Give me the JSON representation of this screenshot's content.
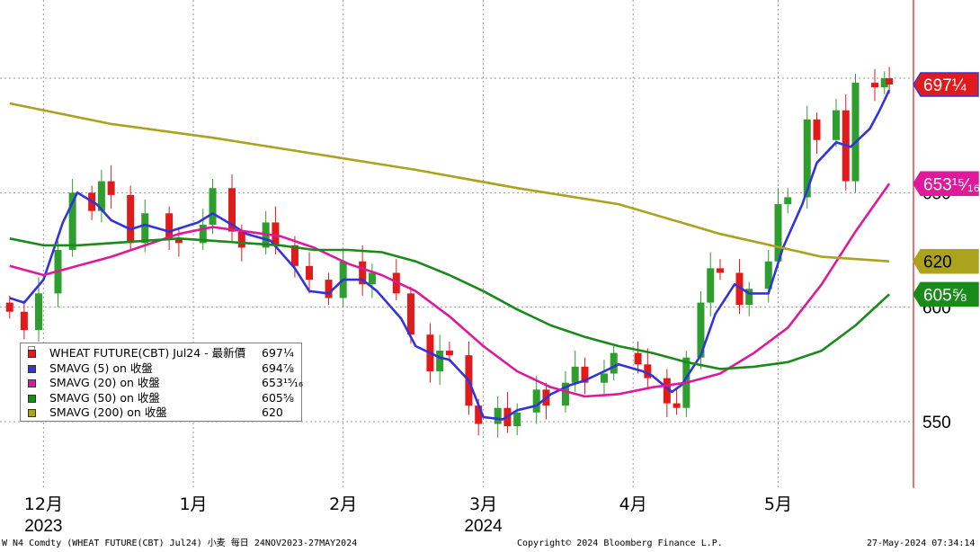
{
  "chart_data": {
    "type": "candlestick",
    "instrument": "W N4 Comdty (WHEAT FUTURE(CBT) Jul24) 小麦  每日 24NOV2023-27MAY2024",
    "y_axis": {
      "side": "right",
      "ticks": [
        550,
        600,
        650,
        700
      ],
      "ylim": [
        520,
        738
      ],
      "grid": true
    },
    "x_axis": {
      "months": [
        {
          "label": "12月",
          "date": "2023-12-01"
        },
        {
          "label": "1月",
          "date": "2024-01-01"
        },
        {
          "label": "2月",
          "date": "2024-02-01"
        },
        {
          "label": "3月",
          "date": "2024-03-01"
        },
        {
          "label": "4月",
          "date": "2024-04-01"
        },
        {
          "label": "5月",
          "date": "2024-05-01"
        }
      ],
      "years": [
        {
          "label": "2023",
          "date": "2023-12-01"
        },
        {
          "label": "2024",
          "date": "2024-03-01"
        }
      ],
      "grid": true
    },
    "up_color": "#2e9e2e",
    "down_color": "#e01b1b",
    "closes": [
      {
        "date": "2023-11-24",
        "close": 598
      },
      {
        "date": "2023-11-27",
        "close": 590
      },
      {
        "date": "2023-11-30",
        "close": 606
      },
      {
        "date": "2023-12-04",
        "close": 625
      },
      {
        "date": "2023-12-07",
        "close": 650
      },
      {
        "date": "2023-12-11",
        "close": 642
      },
      {
        "date": "2023-12-13",
        "close": 655
      },
      {
        "date": "2023-12-15",
        "close": 649
      },
      {
        "date": "2023-12-19",
        "close": 628
      },
      {
        "date": "2023-12-22",
        "close": 641
      },
      {
        "date": "2023-12-27",
        "close": 630
      },
      {
        "date": "2023-12-29",
        "close": 628
      },
      {
        "date": "2024-01-03",
        "close": 636
      },
      {
        "date": "2024-01-05",
        "close": 652
      },
      {
        "date": "2024-01-09",
        "close": 633
      },
      {
        "date": "2024-01-11",
        "close": 626
      },
      {
        "date": "2024-01-16",
        "close": 637
      },
      {
        "date": "2024-01-18",
        "close": 627
      },
      {
        "date": "2024-01-22",
        "close": 618
      },
      {
        "date": "2024-01-25",
        "close": 612
      },
      {
        "date": "2024-01-29",
        "close": 604
      },
      {
        "date": "2024-02-01",
        "close": 620
      },
      {
        "date": "2024-02-05",
        "close": 610
      },
      {
        "date": "2024-02-07",
        "close": 615
      },
      {
        "date": "2024-02-12",
        "close": 606
      },
      {
        "date": "2024-02-15",
        "close": 588
      },
      {
        "date": "2024-02-19",
        "close": 572
      },
      {
        "date": "2024-02-21",
        "close": 581
      },
      {
        "date": "2024-02-23",
        "close": 579
      },
      {
        "date": "2024-02-27",
        "close": 557
      },
      {
        "date": "2024-02-29",
        "close": 549
      },
      {
        "date": "2024-03-04",
        "close": 556
      },
      {
        "date": "2024-03-06",
        "close": 548
      },
      {
        "date": "2024-03-08",
        "close": 554
      },
      {
        "date": "2024-03-12",
        "close": 564
      },
      {
        "date": "2024-03-14",
        "close": 557
      },
      {
        "date": "2024-03-18",
        "close": 567
      },
      {
        "date": "2024-03-20",
        "close": 574
      },
      {
        "date": "2024-03-22",
        "close": 567
      },
      {
        "date": "2024-03-26",
        "close": 571
      },
      {
        "date": "2024-03-28",
        "close": 580
      },
      {
        "date": "2024-04-02",
        "close": 575
      },
      {
        "date": "2024-04-04",
        "close": 569
      },
      {
        "date": "2024-04-08",
        "close": 558
      },
      {
        "date": "2024-04-10",
        "close": 556
      },
      {
        "date": "2024-04-12",
        "close": 578
      },
      {
        "date": "2024-04-15",
        "close": 602
      },
      {
        "date": "2024-04-17",
        "close": 617
      },
      {
        "date": "2024-04-19",
        "close": 615
      },
      {
        "date": "2024-04-23",
        "close": 601
      },
      {
        "date": "2024-04-25",
        "close": 608
      },
      {
        "date": "2024-04-29",
        "close": 620
      },
      {
        "date": "2024-05-01",
        "close": 645
      },
      {
        "date": "2024-05-03",
        "close": 648
      },
      {
        "date": "2024-05-07",
        "close": 682
      },
      {
        "date": "2024-05-09",
        "close": 673
      },
      {
        "date": "2024-05-13",
        "close": 686
      },
      {
        "date": "2024-05-15",
        "close": 655
      },
      {
        "date": "2024-05-17",
        "close": 698
      },
      {
        "date": "2024-05-21",
        "close": 696
      },
      {
        "date": "2024-05-23",
        "close": 700
      },
      {
        "date": "2024-05-24",
        "close": 697.25
      }
    ],
    "series": [
      {
        "name": "SMAVG (5)  on 收盤",
        "color": "#3333dd",
        "points": [
          {
            "date": "2023-11-24",
            "value": 604
          },
          {
            "date": "2023-11-27",
            "value": 602
          },
          {
            "date": "2023-12-01",
            "value": 612
          },
          {
            "date": "2023-12-05",
            "value": 637
          },
          {
            "date": "2023-12-08",
            "value": 650
          },
          {
            "date": "2023-12-12",
            "value": 645
          },
          {
            "date": "2023-12-15",
            "value": 638
          },
          {
            "date": "2023-12-19",
            "value": 634
          },
          {
            "date": "2023-12-22",
            "value": 636
          },
          {
            "date": "2023-12-27",
            "value": 633
          },
          {
            "date": "2024-01-02",
            "value": 637
          },
          {
            "date": "2024-01-05",
            "value": 641
          },
          {
            "date": "2024-01-09",
            "value": 636
          },
          {
            "date": "2024-01-12",
            "value": 632
          },
          {
            "date": "2024-01-17",
            "value": 629
          },
          {
            "date": "2024-01-22",
            "value": 617
          },
          {
            "date": "2024-01-25",
            "value": 607
          },
          {
            "date": "2024-01-29",
            "value": 606
          },
          {
            "date": "2024-02-01",
            "value": 612
          },
          {
            "date": "2024-02-05",
            "value": 612
          },
          {
            "date": "2024-02-08",
            "value": 607
          },
          {
            "date": "2024-02-13",
            "value": 595
          },
          {
            "date": "2024-02-16",
            "value": 583
          },
          {
            "date": "2024-02-21",
            "value": 578
          },
          {
            "date": "2024-02-23",
            "value": 577
          },
          {
            "date": "2024-02-27",
            "value": 568
          },
          {
            "date": "2024-03-01",
            "value": 552
          },
          {
            "date": "2024-03-05",
            "value": 551
          },
          {
            "date": "2024-03-08",
            "value": 555
          },
          {
            "date": "2024-03-12",
            "value": 557
          },
          {
            "date": "2024-03-15",
            "value": 562
          },
          {
            "date": "2024-03-19",
            "value": 566
          },
          {
            "date": "2024-03-22",
            "value": 568
          },
          {
            "date": "2024-03-26",
            "value": 572
          },
          {
            "date": "2024-03-29",
            "value": 575
          },
          {
            "date": "2024-04-03",
            "value": 572
          },
          {
            "date": "2024-04-05",
            "value": 570
          },
          {
            "date": "2024-04-09",
            "value": 563
          },
          {
            "date": "2024-04-11",
            "value": 566
          },
          {
            "date": "2024-04-15",
            "value": 579
          },
          {
            "date": "2024-04-18",
            "value": 597
          },
          {
            "date": "2024-04-22",
            "value": 610
          },
          {
            "date": "2024-04-25",
            "value": 606
          },
          {
            "date": "2024-04-29",
            "value": 606
          },
          {
            "date": "2024-05-02",
            "value": 626
          },
          {
            "date": "2024-05-06",
            "value": 645
          },
          {
            "date": "2024-05-09",
            "value": 663
          },
          {
            "date": "2024-05-13",
            "value": 672
          },
          {
            "date": "2024-05-16",
            "value": 670
          },
          {
            "date": "2024-05-20",
            "value": 678
          },
          {
            "date": "2024-05-22",
            "value": 686
          },
          {
            "date": "2024-05-24",
            "value": 694.875
          }
        ]
      },
      {
        "name": "SMAVG (20)  on 收盤",
        "color": "#e0189c",
        "points": [
          {
            "date": "2023-11-24",
            "value": 618
          },
          {
            "date": "2023-12-01",
            "value": 614
          },
          {
            "date": "2023-12-08",
            "value": 618
          },
          {
            "date": "2023-12-15",
            "value": 622
          },
          {
            "date": "2023-12-22",
            "value": 627
          },
          {
            "date": "2023-12-29",
            "value": 632
          },
          {
            "date": "2024-01-05",
            "value": 635
          },
          {
            "date": "2024-01-12",
            "value": 633
          },
          {
            "date": "2024-01-19",
            "value": 631
          },
          {
            "date": "2024-01-26",
            "value": 626
          },
          {
            "date": "2024-02-02",
            "value": 619
          },
          {
            "date": "2024-02-09",
            "value": 614
          },
          {
            "date": "2024-02-16",
            "value": 607
          },
          {
            "date": "2024-02-23",
            "value": 596
          },
          {
            "date": "2024-03-01",
            "value": 583
          },
          {
            "date": "2024-03-08",
            "value": 572
          },
          {
            "date": "2024-03-15",
            "value": 565
          },
          {
            "date": "2024-03-22",
            "value": 561
          },
          {
            "date": "2024-03-29",
            "value": 562
          },
          {
            "date": "2024-04-05",
            "value": 565
          },
          {
            "date": "2024-04-12",
            "value": 567
          },
          {
            "date": "2024-04-19",
            "value": 571
          },
          {
            "date": "2024-04-26",
            "value": 580
          },
          {
            "date": "2024-05-03",
            "value": 591
          },
          {
            "date": "2024-05-10",
            "value": 610
          },
          {
            "date": "2024-05-17",
            "value": 633
          },
          {
            "date": "2024-05-24",
            "value": 653.9375
          }
        ]
      },
      {
        "name": "SMAVG (50)  on 收盤",
        "color": "#1a8a1a",
        "points": [
          {
            "date": "2023-11-24",
            "value": 630
          },
          {
            "date": "2023-12-01",
            "value": 627
          },
          {
            "date": "2023-12-08",
            "value": 627
          },
          {
            "date": "2023-12-15",
            "value": 628
          },
          {
            "date": "2023-12-22",
            "value": 629
          },
          {
            "date": "2023-12-29",
            "value": 630
          },
          {
            "date": "2024-01-05",
            "value": 629
          },
          {
            "date": "2024-01-12",
            "value": 628
          },
          {
            "date": "2024-01-19",
            "value": 627
          },
          {
            "date": "2024-01-26",
            "value": 625
          },
          {
            "date": "2024-02-02",
            "value": 625
          },
          {
            "date": "2024-02-09",
            "value": 624
          },
          {
            "date": "2024-02-16",
            "value": 620
          },
          {
            "date": "2024-02-23",
            "value": 614
          },
          {
            "date": "2024-03-01",
            "value": 607
          },
          {
            "date": "2024-03-08",
            "value": 599
          },
          {
            "date": "2024-03-15",
            "value": 592
          },
          {
            "date": "2024-03-22",
            "value": 587
          },
          {
            "date": "2024-03-29",
            "value": 583
          },
          {
            "date": "2024-04-05",
            "value": 580
          },
          {
            "date": "2024-04-12",
            "value": 576
          },
          {
            "date": "2024-04-19",
            "value": 573
          },
          {
            "date": "2024-04-26",
            "value": 574
          },
          {
            "date": "2024-05-03",
            "value": 576
          },
          {
            "date": "2024-05-10",
            "value": 581
          },
          {
            "date": "2024-05-17",
            "value": 592
          },
          {
            "date": "2024-05-24",
            "value": 605.625
          }
        ]
      },
      {
        "name": "SMAVG (200)  on 收盤",
        "color": "#aba21e",
        "points": [
          {
            "date": "2023-11-24",
            "value": 689
          },
          {
            "date": "2023-12-15",
            "value": 680
          },
          {
            "date": "2024-01-05",
            "value": 674
          },
          {
            "date": "2024-01-26",
            "value": 667
          },
          {
            "date": "2024-02-16",
            "value": 660
          },
          {
            "date": "2024-03-08",
            "value": 652
          },
          {
            "date": "2024-03-29",
            "value": 645
          },
          {
            "date": "2024-04-19",
            "value": 632
          },
          {
            "date": "2024-05-10",
            "value": 622
          },
          {
            "date": "2024-05-24",
            "value": 620
          }
        ]
      }
    ],
    "tags": [
      {
        "label": "697¼",
        "value": 697.25,
        "fill": "#e01b1b",
        "text_color": "#ffffff",
        "border": "#3333dd"
      },
      {
        "label": "653¹⁵⁄₁₆",
        "value": 653.9375,
        "fill": "#e0189c",
        "text_color": "#ffffff",
        "border": "#e0189c"
      },
      {
        "label": "620",
        "value": 620,
        "fill": "#aba21e",
        "text_color": "#000000",
        "border": "#aba21e"
      },
      {
        "label": "605⅝",
        "value": 605.625,
        "fill": "#1a8a1a",
        "text_color": "#ffffff",
        "border": "#1a8a1a"
      }
    ]
  },
  "legend": {
    "rows": [
      {
        "swatch": "#e01b1b",
        "name": "WHEAT FUTURE(CBT) Jul24 - 最新價",
        "value": "697¼"
      },
      {
        "swatch": "#3333dd",
        "name": "SMAVG (5)  on 收盤",
        "value": "694⅞"
      },
      {
        "swatch": "#e0189c",
        "name": "SMAVG (20)  on 收盤",
        "value": "653¹⁵⁄₁₆"
      },
      {
        "swatch": "#1a8a1a",
        "name": "SMAVG (50)  on 收盤",
        "value": "605⅝"
      },
      {
        "swatch": "#aba21e",
        "name": "SMAVG (200)  on 收盤",
        "value": "620"
      }
    ]
  },
  "footer": {
    "left": "W N4 Comdty (WHEAT FUTURE(CBT) Jul24) 小麦  每日 24NOV2023-27MAY2024",
    "center": "Copyright© 2024 Bloomberg Finance L.P.",
    "right": "27-May-2024 07:34:14"
  }
}
